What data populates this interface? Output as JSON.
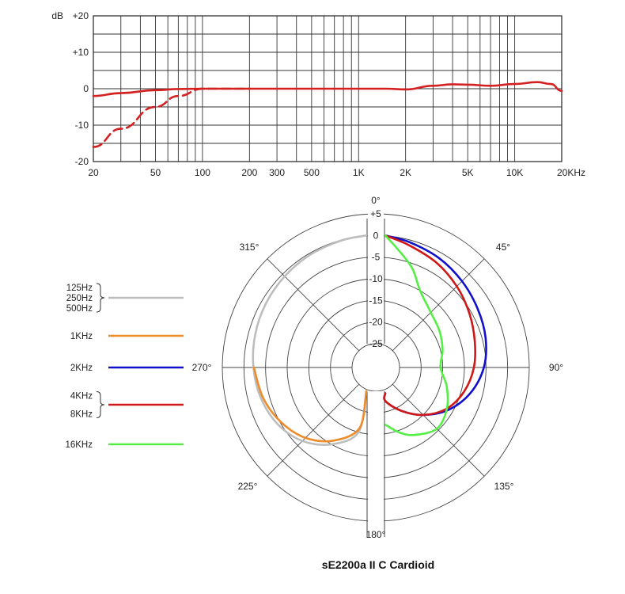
{
  "chart_data": [
    {
      "type": "line",
      "subtype": "frequency-response",
      "title": "",
      "xscale": "log",
      "xlim": [
        20,
        20000
      ],
      "ylim": [
        -20,
        20
      ],
      "ylabel": "dB",
      "grid": true,
      "x_ticks": [
        {
          "value": 20,
          "label": "20"
        },
        {
          "value": 50,
          "label": "50"
        },
        {
          "value": 100,
          "label": "100"
        },
        {
          "value": 200,
          "label": "200"
        },
        {
          "value": 300,
          "label": "300"
        },
        {
          "value": 500,
          "label": "500"
        },
        {
          "value": 1000,
          "label": "1K"
        },
        {
          "value": 2000,
          "label": "2K"
        },
        {
          "value": 5000,
          "label": "5K"
        },
        {
          "value": 10000,
          "label": "10K"
        },
        {
          "value": 20000,
          "label": "20KHz"
        }
      ],
      "y_ticks": [
        {
          "value": 20,
          "label": "+20"
        },
        {
          "value": 10,
          "label": "+10"
        },
        {
          "value": 0,
          "label": "0"
        },
        {
          "value": -10,
          "label": "-10"
        },
        {
          "value": -20,
          "label": "-20"
        }
      ],
      "series": [
        {
          "color": "#d42020",
          "style": "solid",
          "x": [
            20,
            30,
            50,
            70,
            100,
            200,
            500,
            1000,
            1500,
            2000,
            3000,
            4000,
            5000,
            7000,
            10000,
            14000,
            17000,
            20000
          ],
          "y": [
            -2,
            -1.2,
            -0.4,
            -0.1,
            0,
            0,
            0,
            0,
            0,
            -0.2,
            0.8,
            1.2,
            1.1,
            0.8,
            1.3,
            1.8,
            1.3,
            -0.6
          ]
        },
        {
          "color": "#d42020",
          "style": "dashed",
          "x": [
            20,
            30,
            50,
            70,
            100,
            200
          ],
          "y": [
            -16,
            -11,
            -5,
            -2,
            0,
            0
          ]
        }
      ]
    },
    {
      "type": "polar",
      "title": "sE2200a II C  Cardioid",
      "angle_labels": [
        {
          "deg": 0,
          "label": "0°"
        },
        {
          "deg": 45,
          "label": "45°"
        },
        {
          "deg": 90,
          "label": "90°"
        },
        {
          "deg": 135,
          "label": "135°"
        },
        {
          "deg": 180,
          "label": "180°"
        },
        {
          "deg": 225,
          "label": "225°"
        },
        {
          "deg": 270,
          "label": "270°"
        },
        {
          "deg": 315,
          "label": "315°"
        }
      ],
      "rlim": [
        -25,
        5
      ],
      "r_ticks": [
        "+5",
        "0",
        "-5",
        "-10",
        "-15",
        "-20",
        "-25"
      ],
      "r_tick_values": [
        5,
        0,
        -5,
        -10,
        -15,
        -20,
        -25
      ],
      "legend": [
        {
          "lines": [
            "125Hz",
            "250Hz",
            "500Hz"
          ],
          "color": "#bdbdbd"
        },
        {
          "lines": [
            "1KHz"
          ],
          "color": "#ee8c2a"
        },
        {
          "lines": [
            "2KHz"
          ],
          "color": "#1010cc"
        },
        {
          "lines": [
            "4KHz",
            "8KHz"
          ],
          "color": "#d01818"
        },
        {
          "lines": [
            "16KHz"
          ],
          "color": "#55ee44"
        }
      ],
      "series": [
        {
          "name": "125Hz 250Hz 500Hz",
          "color": "#bdbdbd",
          "side": "left",
          "angles": [
            180,
            195,
            210,
            225,
            240,
            255,
            270,
            285,
            300,
            315,
            330,
            345,
            360
          ],
          "values": [
            -25,
            -15,
            -10,
            -6.5,
            -4.3,
            -3,
            -2.2,
            -1.6,
            -1.1,
            -0.7,
            -0.35,
            -0.1,
            0
          ]
        },
        {
          "name": "1KHz",
          "color": "#ee8c2a",
          "side": "left",
          "angles": [
            180,
            195,
            210,
            225,
            240,
            255,
            270
          ],
          "values": [
            -25,
            -16,
            -11,
            -7.5,
            -5.2,
            -3.5,
            -2.3
          ]
        },
        {
          "name": "2KHz",
          "color": "#1010cc",
          "side": "right",
          "angles": [
            0,
            15,
            30,
            45,
            60,
            75,
            90,
            105,
            120,
            135,
            150,
            165,
            175
          ],
          "values": [
            0,
            -0.5,
            -1.3,
            -2.3,
            -3.3,
            -4.2,
            -5.5,
            -7.8,
            -11,
            -15,
            -19,
            -22.5,
            -24.5
          ]
        },
        {
          "name": "4KHz 8KHz",
          "color": "#d01818",
          "side": "right",
          "angles": [
            0,
            15,
            30,
            45,
            60,
            75,
            90,
            105,
            120,
            135,
            150,
            165,
            175
          ],
          "values": [
            0,
            -1.2,
            -2.5,
            -4,
            -5.5,
            -6.8,
            -7.8,
            -9.3,
            -11.5,
            -15,
            -19,
            -22.5,
            -24.5
          ]
        },
        {
          "name": "16KHz",
          "color": "#55ee44",
          "side": "right",
          "angles": [
            0,
            10,
            20,
            30,
            45,
            60,
            75,
            90,
            105,
            120,
            135,
            150,
            160,
            170
          ],
          "values": [
            0,
            -2.5,
            -6,
            -10,
            -12.5,
            -13.5,
            -14.5,
            -15.5,
            -13.5,
            -11.5,
            -10.5,
            -12.5,
            -14.5,
            -17
          ]
        }
      ]
    }
  ]
}
